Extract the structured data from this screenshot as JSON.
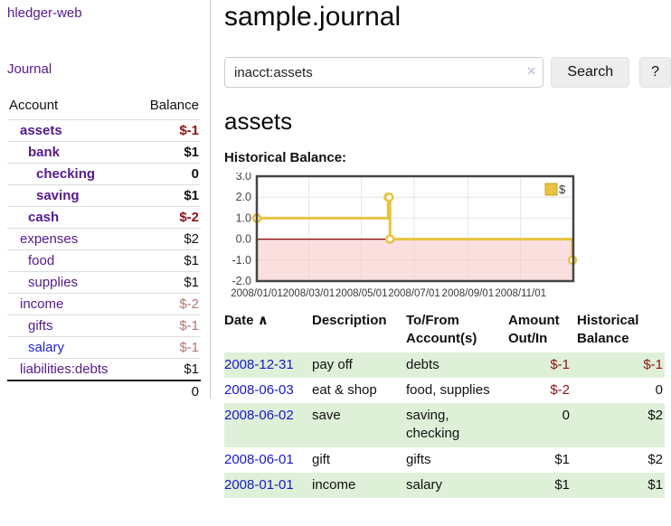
{
  "brand": "hledger-web",
  "nav": {
    "journal": "Journal"
  },
  "sidebar": {
    "header": {
      "account": "Account",
      "balance": "Balance"
    },
    "accounts": [
      {
        "name": "assets",
        "balance": "$-1",
        "depth": 1,
        "bold": true,
        "balance_style": "neg-strong"
      },
      {
        "name": "bank",
        "balance": "$1",
        "depth": 2,
        "bold": true,
        "balance_style": "normal"
      },
      {
        "name": "checking",
        "balance": "0",
        "depth": 3,
        "bold": true,
        "balance_style": "normal"
      },
      {
        "name": "saving",
        "balance": "$1",
        "depth": 3,
        "bold": true,
        "balance_style": "normal"
      },
      {
        "name": "cash",
        "balance": "$-2",
        "depth": 2,
        "bold": true,
        "balance_style": "neg-strong"
      },
      {
        "name": "expenses",
        "balance": "$2",
        "depth": 1,
        "bold": false,
        "balance_style": "normal"
      },
      {
        "name": "food",
        "balance": "$1",
        "depth": 2,
        "bold": false,
        "balance_style": "normal"
      },
      {
        "name": "supplies",
        "balance": "$1",
        "depth": 2,
        "bold": false,
        "balance_style": "normal"
      },
      {
        "name": "income",
        "balance": "$-2",
        "depth": 1,
        "bold": false,
        "balance_style": "neg-soft"
      },
      {
        "name": "gifts",
        "balance": "$-1",
        "depth": 2,
        "bold": false,
        "balance_style": "neg-soft"
      },
      {
        "name": "salary",
        "balance": "$-1",
        "depth": 2,
        "bold": false,
        "balance_style": "neg-soft",
        "link_color": "blue"
      },
      {
        "name": "liabilities:debts",
        "balance": "$1",
        "depth": 1,
        "bold": false,
        "balance_style": "normal"
      }
    ],
    "total": "0"
  },
  "header": {
    "title": "sample.journal"
  },
  "search": {
    "value": "inacct:assets",
    "clear_icon": "×",
    "search_button": "Search",
    "help_button": "?"
  },
  "account_view": {
    "title": "assets",
    "chart_title": "Historical Balance:"
  },
  "chart_data": {
    "type": "line",
    "step": true,
    "title": "Historical Balance",
    "series": [
      {
        "name": "$",
        "color": "#e8c240",
        "marker_fill": "#ffffff",
        "points": [
          [
            "2008-01-01",
            1.0
          ],
          [
            "2008-06-01",
            2.0
          ],
          [
            "2008-06-02",
            2.0
          ],
          [
            "2008-06-03",
            0.0
          ],
          [
            "2008-12-31",
            -1.0
          ]
        ]
      }
    ],
    "x_ticks": [
      {
        "t": "2008-01-01",
        "label": "2008/01/01"
      },
      {
        "t": "2008-03-01",
        "label": "2008/03/01"
      },
      {
        "t": "2008-05-01",
        "label": "2008/05/01"
      },
      {
        "t": "2008-07-01",
        "label": "2008/07/01"
      },
      {
        "t": "2008-09-01",
        "label": "2008/09/01"
      },
      {
        "t": "2008-11-01",
        "label": "2008/11/01"
      }
    ],
    "y_ticks": [
      3.0,
      2.0,
      1.0,
      0.0,
      -1.0,
      -2.0
    ],
    "ylim": [
      -2.0,
      3.0
    ],
    "xlim": [
      "2008-01-01",
      "2009-01-01"
    ],
    "grid": true,
    "legend_position": "top-right",
    "legend_label": "$",
    "negative_region_color": "#f6caca",
    "zero_line_color": "#8b0000",
    "plot_border_color": "#454545",
    "grid_color": "#e4e4e4",
    "legend_border_color": "#c9a227"
  },
  "register": {
    "sort_icon": "∧",
    "columns": [
      "Date",
      "Description",
      "To/From Account(s)",
      "Amount Out/In",
      "Historical Balance"
    ],
    "rows": [
      {
        "date": "2008-12-31",
        "description": "pay off",
        "accounts": "debts",
        "amount": "$-1",
        "amount_negative": true,
        "balance": "$-1",
        "balance_negative": true
      },
      {
        "date": "2008-06-03",
        "description": "eat & shop",
        "accounts": "food, supplies",
        "amount": "$-2",
        "amount_negative": true,
        "balance": "0",
        "balance_negative": false
      },
      {
        "date": "2008-06-02",
        "description": "save",
        "accounts": "saving, checking",
        "amount": "0",
        "amount_negative": false,
        "balance": "$2",
        "balance_negative": false
      },
      {
        "date": "2008-06-01",
        "description": "gift",
        "accounts": "gifts",
        "amount": "$1",
        "amount_negative": false,
        "balance": "$2",
        "balance_negative": false
      },
      {
        "date": "2008-01-01",
        "description": "income",
        "accounts": "salary",
        "amount": "$1",
        "amount_negative": false,
        "balance": "$1",
        "balance_negative": false
      }
    ]
  }
}
